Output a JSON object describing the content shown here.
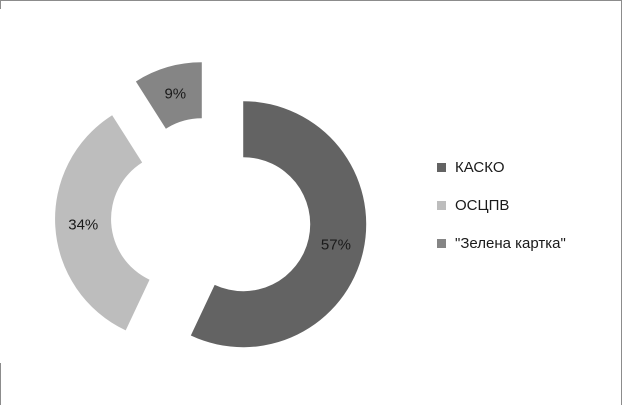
{
  "chart_data": {
    "type": "pie",
    "variant": "donut-exploded",
    "categories": [
      "КАСКО",
      "ОСЦПВ",
      "\"Зелена картка\""
    ],
    "values": [
      57,
      34,
      9
    ],
    "value_labels": [
      "57%",
      "34%",
      "9%"
    ],
    "colors": [
      "#636363",
      "#bdbdbd",
      "#858585"
    ],
    "legend_position": "right"
  },
  "legend": {
    "items": [
      {
        "label": "КАСКО",
        "color": "#636363"
      },
      {
        "label": "ОСЦПВ",
        "color": "#bdbdbd"
      },
      {
        "label": "\"Зелена картка\"",
        "color": "#858585"
      }
    ]
  }
}
